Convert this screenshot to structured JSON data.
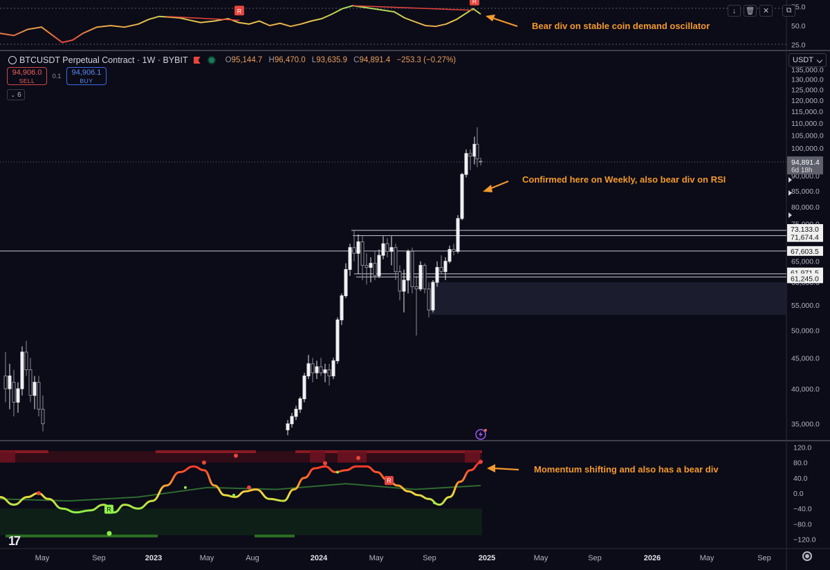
{
  "toolbar": {
    "icons": [
      "arrow-down-icon",
      "trash-icon",
      "close-icon",
      "maximize-icon"
    ]
  },
  "symbol_legend": {
    "title": "BTCUSDT Perpetual Contract · 1W · BYBIT",
    "open_label": "O",
    "open": "95,144.7",
    "high_label": "H",
    "high": "96,470.0",
    "low_label": "L",
    "low": "93,635.9",
    "close_label": "C",
    "close": "94,891.4",
    "change": "−253.3 (−0.27%)"
  },
  "trade": {
    "sell_price": "94,906.0",
    "sell_label": "SELL",
    "spread": "0.1",
    "buy_price": "94,906.1",
    "buy_label": "BUY"
  },
  "collapse_count": "6",
  "currency": "USDT",
  "annotations": {
    "top": "Bear div on stable coin demand oscillator",
    "price": "Confirmed here on Weekly, also bear div on RSI",
    "bottom": "Momentum shifting and also has a bear div"
  },
  "markers": {
    "divergence_label": "R"
  },
  "price_badge": {
    "price": "94,891.4",
    "countdown": "6d 18h"
  },
  "level_labels": [
    "73,133.0",
    "71,674.4",
    "67,603.5",
    "61,971.5",
    "61,245.0"
  ],
  "chart_data": [
    {
      "type": "line",
      "panel": "stablecoin-demand-oscillator",
      "title": "",
      "y_ticks": [
        "75.0",
        "50.0",
        "25.0"
      ],
      "ylim": [
        22,
        78
      ],
      "x": [
        0,
        20,
        40,
        60,
        75,
        90,
        105,
        120,
        140,
        160,
        180,
        200,
        215,
        230,
        245,
        260,
        275,
        290,
        310,
        330,
        345,
        360,
        375,
        390,
        405,
        420,
        435,
        450,
        465,
        480,
        495,
        510,
        525,
        540,
        555,
        570,
        585,
        600,
        615,
        630,
        645,
        660,
        672,
        684,
        695
      ],
      "values": [
        40,
        37,
        45,
        48,
        38,
        28,
        31,
        40,
        48,
        50,
        48,
        52,
        58,
        62,
        61,
        60,
        57,
        54,
        56,
        59,
        54,
        52,
        56,
        50,
        53,
        49,
        52,
        56,
        59,
        65,
        72,
        76,
        74,
        72,
        70,
        68,
        60,
        55,
        50,
        49,
        52,
        58,
        65,
        72,
        65
      ],
      "divergence_lines": [
        {
          "from": [
            240,
            62
          ],
          "to": [
            346,
            57
          ]
        },
        {
          "from": [
            510,
            76
          ],
          "to": [
            684,
            70
          ]
        }
      ]
    },
    {
      "type": "candlestick",
      "panel": "price",
      "y_ticks": [
        "135,000.0",
        "130,000.0",
        "125,000.0",
        "120,000.0",
        "115,000.0",
        "110,000.0",
        "105,000.0",
        "100,000.0",
        "90,000.0",
        "85,000.0",
        "80,000.0",
        "75,000.0",
        "65,000.0",
        "60,000.0",
        "55,000.0",
        "50,000.0",
        "45,000.0",
        "40,000.0",
        "35,000.0"
      ],
      "ylim": [
        33000,
        138000
      ],
      "x_ticks": [
        "May",
        "Sep",
        "2023",
        "May",
        "Aug",
        "2024",
        "May",
        "Sep",
        "2025",
        "May",
        "Sep",
        "2026",
        "May",
        "Sep"
      ],
      "last_price": 94891.4,
      "horizontal_levels": [
        73133.0,
        71674.4,
        67603.5,
        61971.5,
        61245.0
      ],
      "demand_zone": [
        53000,
        60000
      ],
      "candles": [
        {
          "x": 8,
          "o": 42000,
          "h": 46000,
          "l": 38000,
          "c": 40000
        },
        {
          "x": 14,
          "o": 40000,
          "h": 44000,
          "l": 37000,
          "c": 42000
        },
        {
          "x": 20,
          "o": 41000,
          "h": 43000,
          "l": 36000,
          "c": 38000
        },
        {
          "x": 26,
          "o": 38000,
          "h": 41000,
          "l": 36500,
          "c": 40000
        },
        {
          "x": 32,
          "o": 40000,
          "h": 47000,
          "l": 39000,
          "c": 46000
        },
        {
          "x": 38,
          "o": 46000,
          "h": 48000,
          "l": 42000,
          "c": 43000
        },
        {
          "x": 44,
          "o": 43000,
          "h": 45000,
          "l": 38000,
          "c": 39000
        },
        {
          "x": 50,
          "o": 39000,
          "h": 42000,
          "l": 37000,
          "c": 41000
        },
        {
          "x": 56,
          "o": 41000,
          "h": 42000,
          "l": 36000,
          "c": 37000
        },
        {
          "x": 62,
          "o": 37000,
          "h": 39000,
          "l": 34000,
          "c": 35000
        },
        {
          "x": 416,
          "o": 34200,
          "h": 35500,
          "l": 33500,
          "c": 35000
        },
        {
          "x": 422,
          "o": 35000,
          "h": 36500,
          "l": 34500,
          "c": 36000
        },
        {
          "x": 428,
          "o": 36000,
          "h": 37500,
          "l": 35500,
          "c": 37000
        },
        {
          "x": 434,
          "o": 37000,
          "h": 38800,
          "l": 36500,
          "c": 38500
        },
        {
          "x": 440,
          "o": 38500,
          "h": 42500,
          "l": 38000,
          "c": 42000
        },
        {
          "x": 446,
          "o": 42000,
          "h": 45500,
          "l": 41500,
          "c": 44000
        },
        {
          "x": 452,
          "o": 44000,
          "h": 45000,
          "l": 41000,
          "c": 42500
        },
        {
          "x": 458,
          "o": 42500,
          "h": 44500,
          "l": 41500,
          "c": 43500
        },
        {
          "x": 464,
          "o": 43500,
          "h": 45000,
          "l": 42000,
          "c": 42500
        },
        {
          "x": 470,
          "o": 42500,
          "h": 44000,
          "l": 41000,
          "c": 43000
        },
        {
          "x": 476,
          "o": 43000,
          "h": 44000,
          "l": 40500,
          "c": 42000
        },
        {
          "x": 482,
          "o": 42000,
          "h": 45000,
          "l": 41500,
          "c": 44500
        },
        {
          "x": 488,
          "o": 44500,
          "h": 52500,
          "l": 44000,
          "c": 52000
        },
        {
          "x": 494,
          "o": 52000,
          "h": 57500,
          "l": 51000,
          "c": 57000
        },
        {
          "x": 500,
          "o": 57000,
          "h": 64500,
          "l": 56500,
          "c": 63000
        },
        {
          "x": 506,
          "o": 63000,
          "h": 69500,
          "l": 61500,
          "c": 68500
        },
        {
          "x": 512,
          "o": 68500,
          "h": 73000,
          "l": 65000,
          "c": 67000
        },
        {
          "x": 518,
          "o": 67000,
          "h": 72000,
          "l": 62000,
          "c": 70000
        },
        {
          "x": 524,
          "o": 70000,
          "h": 71500,
          "l": 60500,
          "c": 64000
        },
        {
          "x": 530,
          "o": 64000,
          "h": 67000,
          "l": 59500,
          "c": 63500
        },
        {
          "x": 536,
          "o": 63500,
          "h": 66000,
          "l": 60000,
          "c": 64500
        },
        {
          "x": 542,
          "o": 64500,
          "h": 67500,
          "l": 60500,
          "c": 61500
        },
        {
          "x": 548,
          "o": 61500,
          "h": 68000,
          "l": 61000,
          "c": 66500
        },
        {
          "x": 554,
          "o": 66500,
          "h": 71500,
          "l": 65500,
          "c": 69500
        },
        {
          "x": 560,
          "o": 69500,
          "h": 71000,
          "l": 66000,
          "c": 67500
        },
        {
          "x": 566,
          "o": 67500,
          "h": 71500,
          "l": 64000,
          "c": 68500
        },
        {
          "x": 572,
          "o": 68500,
          "h": 69500,
          "l": 60500,
          "c": 62500
        },
        {
          "x": 578,
          "o": 62500,
          "h": 64000,
          "l": 56000,
          "c": 58000
        },
        {
          "x": 584,
          "o": 58000,
          "h": 63000,
          "l": 53500,
          "c": 60500
        },
        {
          "x": 590,
          "o": 60500,
          "h": 68000,
          "l": 57500,
          "c": 67500
        },
        {
          "x": 596,
          "o": 67500,
          "h": 68500,
          "l": 57500,
          "c": 59000
        },
        {
          "x": 602,
          "o": 59000,
          "h": 61500,
          "l": 49000,
          "c": 58500
        },
        {
          "x": 608,
          "o": 58500,
          "h": 65000,
          "l": 58000,
          "c": 64000
        },
        {
          "x": 614,
          "o": 64000,
          "h": 64500,
          "l": 57500,
          "c": 58500
        },
        {
          "x": 620,
          "o": 58500,
          "h": 60000,
          "l": 52500,
          "c": 54000
        },
        {
          "x": 626,
          "o": 54000,
          "h": 60500,
          "l": 53500,
          "c": 60000
        },
        {
          "x": 632,
          "o": 60000,
          "h": 65000,
          "l": 59000,
          "c": 63500
        },
        {
          "x": 638,
          "o": 63500,
          "h": 66500,
          "l": 62000,
          "c": 62500
        },
        {
          "x": 644,
          "o": 62500,
          "h": 66000,
          "l": 60500,
          "c": 65000
        },
        {
          "x": 650,
          "o": 65000,
          "h": 69000,
          "l": 64500,
          "c": 68000
        },
        {
          "x": 656,
          "o": 68000,
          "h": 69500,
          "l": 66500,
          "c": 67500
        },
        {
          "x": 662,
          "o": 67500,
          "h": 77500,
          "l": 67000,
          "c": 76500
        },
        {
          "x": 668,
          "o": 76500,
          "h": 91000,
          "l": 76000,
          "c": 90500
        },
        {
          "x": 674,
          "o": 90500,
          "h": 99500,
          "l": 89500,
          "c": 98000
        },
        {
          "x": 680,
          "o": 98000,
          "h": 99500,
          "l": 92000,
          "c": 97000
        },
        {
          "x": 686,
          "o": 97000,
          "h": 104500,
          "l": 94000,
          "c": 101500
        },
        {
          "x": 690,
          "o": 101500,
          "h": 108300,
          "l": 93000,
          "c": 96000
        },
        {
          "x": 695,
          "o": 95144.7,
          "h": 96470.0,
          "l": 93635.9,
          "c": 94891.4
        }
      ]
    },
    {
      "type": "line",
      "panel": "momentum",
      "y_ticks": [
        "120.0",
        "80.0",
        "40.0",
        "0.0",
        "−40.0",
        "−80.0",
        "−120.0"
      ],
      "ylim": [
        -130,
        130
      ],
      "series": [
        {
          "x": [
            0,
            20,
            40,
            55,
            70,
            90,
            110,
            130,
            150,
            165,
            180,
            200,
            220,
            240,
            260,
            280,
            295,
            310,
            325,
            340,
            355,
            370,
            390,
            410,
            425,
            440,
            455,
            470,
            485,
            500,
            515,
            530,
            545,
            560,
            575,
            590,
            605,
            620,
            635,
            650,
            665,
            680,
            695
          ],
          "values": [
            -10,
            -30,
            -10,
            0,
            -15,
            -40,
            -50,
            -45,
            -30,
            -50,
            -30,
            -40,
            -20,
            20,
            55,
            70,
            60,
            20,
            -5,
            -10,
            5,
            10,
            -15,
            -20,
            10,
            40,
            65,
            70,
            55,
            60,
            70,
            70,
            55,
            35,
            20,
            5,
            -5,
            -15,
            -30,
            -10,
            30,
            60,
            80
          ]
        },
        {
          "x": [
            0,
            100,
            200,
            300,
            400,
            500,
            600,
            695
          ],
          "values": [
            -15,
            -20,
            -10,
            15,
            10,
            25,
            10,
            20
          ]
        }
      ],
      "bands": [
        80,
        -40
      ]
    }
  ]
}
